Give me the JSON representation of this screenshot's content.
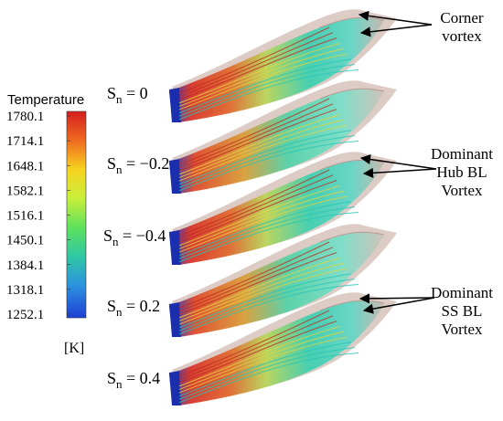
{
  "colorbar": {
    "title": "Temperature",
    "unit": "[K]",
    "ticks": [
      "1780.1",
      "1714.1",
      "1648.1",
      "1582.1",
      "1516.1",
      "1450.1",
      "1384.1",
      "1318.1",
      "1252.1"
    ],
    "colors": [
      "#d61f1f",
      "#ef6a1f",
      "#f7d21f",
      "#c9ef3a",
      "#5fe25a",
      "#2fc9a3",
      "#2c8fe0",
      "#1e3fd4"
    ]
  },
  "cases": [
    {
      "base": "S",
      "sub": "n",
      "rest": " = 0"
    },
    {
      "base": "S",
      "sub": "n",
      "rest": " = −0.2"
    },
    {
      "base": "S",
      "sub": "n",
      "rest": " = −0.4"
    },
    {
      "base": "S",
      "sub": "n",
      "rest": " = 0.2"
    },
    {
      "base": "S",
      "sub": "n",
      "rest": " = 0.4"
    }
  ],
  "annotations": [
    {
      "lines": [
        "Corner",
        "vortex"
      ]
    },
    {
      "lines": [
        "Dominant",
        "Hub BL",
        "Vortex"
      ]
    },
    {
      "lines": [
        "Dominant",
        "SS BL",
        "Vortex"
      ]
    }
  ]
}
